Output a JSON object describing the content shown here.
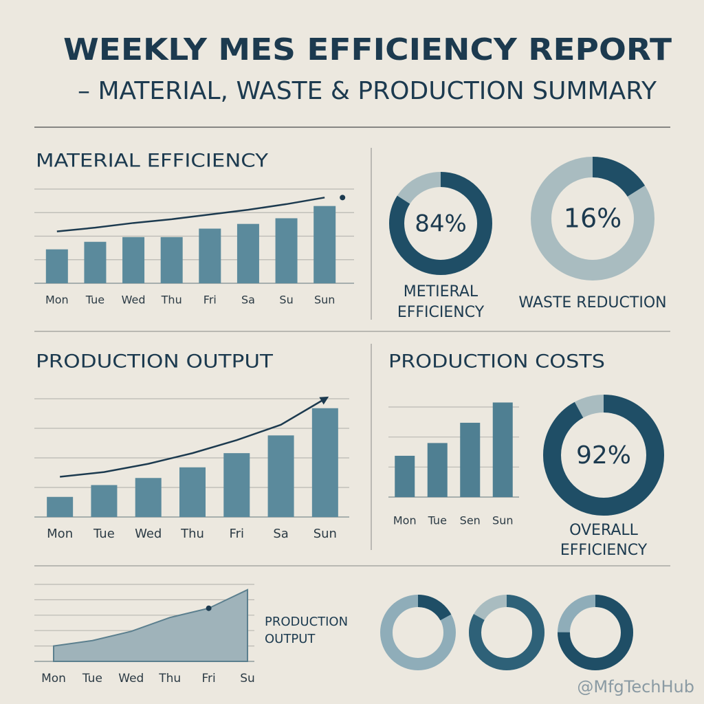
{
  "header": {
    "title": "WEEKLY MES EFFICIENCY REPORT",
    "subtitle": "– MATERIAL, WASTE & PRODUCTION SUMMARY"
  },
  "chart_data": [
    {
      "type": "bar",
      "title": "MATERIAL EFFICIENCY",
      "categories": [
        "Mon",
        "Tue",
        "Wed",
        "Thu",
        "Fri",
        "Sa",
        "Su",
        "Sun"
      ],
      "series": [
        {
          "color": "#5b8a9c",
          "values": [
            36,
            44,
            49,
            49,
            58,
            63,
            69,
            82
          ]
        },
        {
          "type": "line",
          "color": "#1c3a4f",
          "values": [
            55,
            59,
            64,
            68,
            73,
            78,
            84,
            91
          ]
        }
      ],
      "ylim": [
        0,
        100
      ],
      "yticks": [
        0,
        25,
        50,
        75,
        100
      ],
      "grid": true
    },
    {
      "type": "donut",
      "value": 84,
      "value_label": "84%",
      "label": [
        "METIERAL",
        "EFFICIENCY"
      ],
      "colors": [
        "#1f4e66",
        "#a9bcc0"
      ]
    },
    {
      "type": "donut",
      "value": 16,
      "value_label": "16%",
      "label": [
        "WASTE REDUCTION"
      ],
      "colors": [
        "#1f4e66",
        "#a9bcc0"
      ]
    },
    {
      "type": "bar",
      "title": "PRODUCTION OUTPUT",
      "categories": [
        "Mon",
        "Tue",
        "Wed",
        "Thu",
        "Fri",
        "Sa",
        "Sun"
      ],
      "series": [
        {
          "color": "#5b8a9c",
          "values": [
            17,
            27,
            33,
            42,
            54,
            69,
            92
          ]
        },
        {
          "type": "line",
          "color": "#1c3a4f",
          "values": [
            34,
            38,
            45,
            54,
            65,
            78,
            100
          ]
        }
      ],
      "ylim": [
        0,
        100
      ],
      "yticks": [
        0,
        25,
        50,
        75,
        100
      ],
      "grid": true
    },
    {
      "type": "bar",
      "title": "PRODUCTION COSTS",
      "categories": [
        "Mon",
        "Tue",
        "Sen",
        "Sun"
      ],
      "series": [
        {
          "color": "#4f7f92",
          "values": [
            55,
            72,
            99,
            126
          ]
        }
      ],
      "ylim": [
        0,
        120
      ],
      "yticks": [
        0,
        40,
        80,
        120
      ],
      "grid": true
    },
    {
      "type": "donut",
      "value": 92,
      "value_label": "92%",
      "label": [
        "OVERALL",
        "EFFICIENCY"
      ],
      "colors": [
        "#1f4e66",
        "#a9bcc0"
      ]
    },
    {
      "type": "area",
      "label": [
        "PRODUCTION",
        "OUTPUT"
      ],
      "categories": [
        "Mon",
        "Tue",
        "Wed",
        "Thu",
        "Fri",
        "Su"
      ],
      "series": [
        {
          "color": "#9fb3ba",
          "values": [
            20,
            27,
            39,
            57,
            69,
            93
          ]
        }
      ],
      "ylim": [
        0,
        100
      ],
      "yticks": [
        0,
        20,
        40,
        60,
        80,
        100
      ],
      "grid": true
    },
    {
      "type": "donut",
      "value": 17,
      "colors": [
        "#1f4e66",
        "#8fadb9"
      ]
    },
    {
      "type": "donut",
      "value": 83,
      "colors": [
        "#2e6178",
        "#a9bcc0"
      ]
    },
    {
      "type": "donut",
      "value": 75,
      "colors": [
        "#1f4e66",
        "#8fadb9"
      ]
    }
  ],
  "watermark": "@MfgTechHub"
}
